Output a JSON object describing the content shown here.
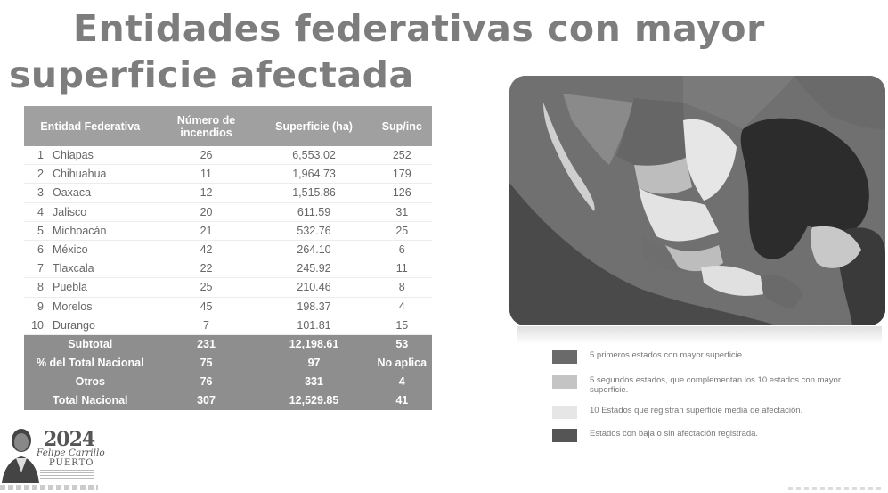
{
  "title": {
    "line1": "Entidades federativas con mayor",
    "line2": "superficie afectada"
  },
  "table": {
    "headers": [
      "Entidad Federativa",
      "Número de incendios",
      "Superficie (ha)",
      "Sup/inc"
    ],
    "rows": [
      {
        "n": "1",
        "entidad": "Chiapas",
        "incendios": "26",
        "superficie": "6,553.02",
        "supinc": "252"
      },
      {
        "n": "2",
        "entidad": "Chihuahua",
        "incendios": "11",
        "superficie": "1,964.73",
        "supinc": "179"
      },
      {
        "n": "3",
        "entidad": "Oaxaca",
        "incendios": "12",
        "superficie": "1,515.86",
        "supinc": "126"
      },
      {
        "n": "4",
        "entidad": "Jalisco",
        "incendios": "20",
        "superficie": "611.59",
        "supinc": "31"
      },
      {
        "n": "5",
        "entidad": "Michoacán",
        "incendios": "21",
        "superficie": "532.76",
        "supinc": "25"
      },
      {
        "n": "6",
        "entidad": "México",
        "incendios": "42",
        "superficie": "264.10",
        "supinc": "6"
      },
      {
        "n": "7",
        "entidad": "Tlaxcala",
        "incendios": "22",
        "superficie": "245.92",
        "supinc": "11"
      },
      {
        "n": "8",
        "entidad": "Puebla",
        "incendios": "25",
        "superficie": "210.46",
        "supinc": "8"
      },
      {
        "n": "9",
        "entidad": "Morelos",
        "incendios": "45",
        "superficie": "198.37",
        "supinc": "4"
      },
      {
        "n": "10",
        "entidad": "Durango",
        "incendios": "7",
        "superficie": "101.81",
        "supinc": "15"
      }
    ],
    "totals": [
      {
        "label": "Subtotal",
        "incendios": "231",
        "superficie": "12,198.61",
        "supinc": "53"
      },
      {
        "label": "% del Total Nacional",
        "incendios": "75",
        "superficie": "97",
        "supinc": "No aplica"
      },
      {
        "label": "Otros",
        "incendios": "76",
        "superficie": "331",
        "supinc": "4"
      },
      {
        "label": "Total Nacional",
        "incendios": "307",
        "superficie": "12,529.85",
        "supinc": "41"
      }
    ]
  },
  "legend": [
    {
      "text": "5 primeros estados con mayor superficie.",
      "color": "#6a6a6a"
    },
    {
      "text": "5 segundos estados, que complementan los 10 estados con mayor superficie.",
      "color": "#c4c4c4"
    },
    {
      "text": "10 Estados que registran superficie media de afectación.",
      "color": "#e6e6e6"
    },
    {
      "text": "Estados con baja o sin afectación registrada.",
      "color": "#555555"
    }
  ],
  "logo": {
    "year": "2024",
    "name": "Felipe Carrillo",
    "city": "PUERTO"
  },
  "colors": {
    "header_bg": "#a0a0a0",
    "footer_bg": "#8e8e8e",
    "title": "#7d7d7d"
  }
}
